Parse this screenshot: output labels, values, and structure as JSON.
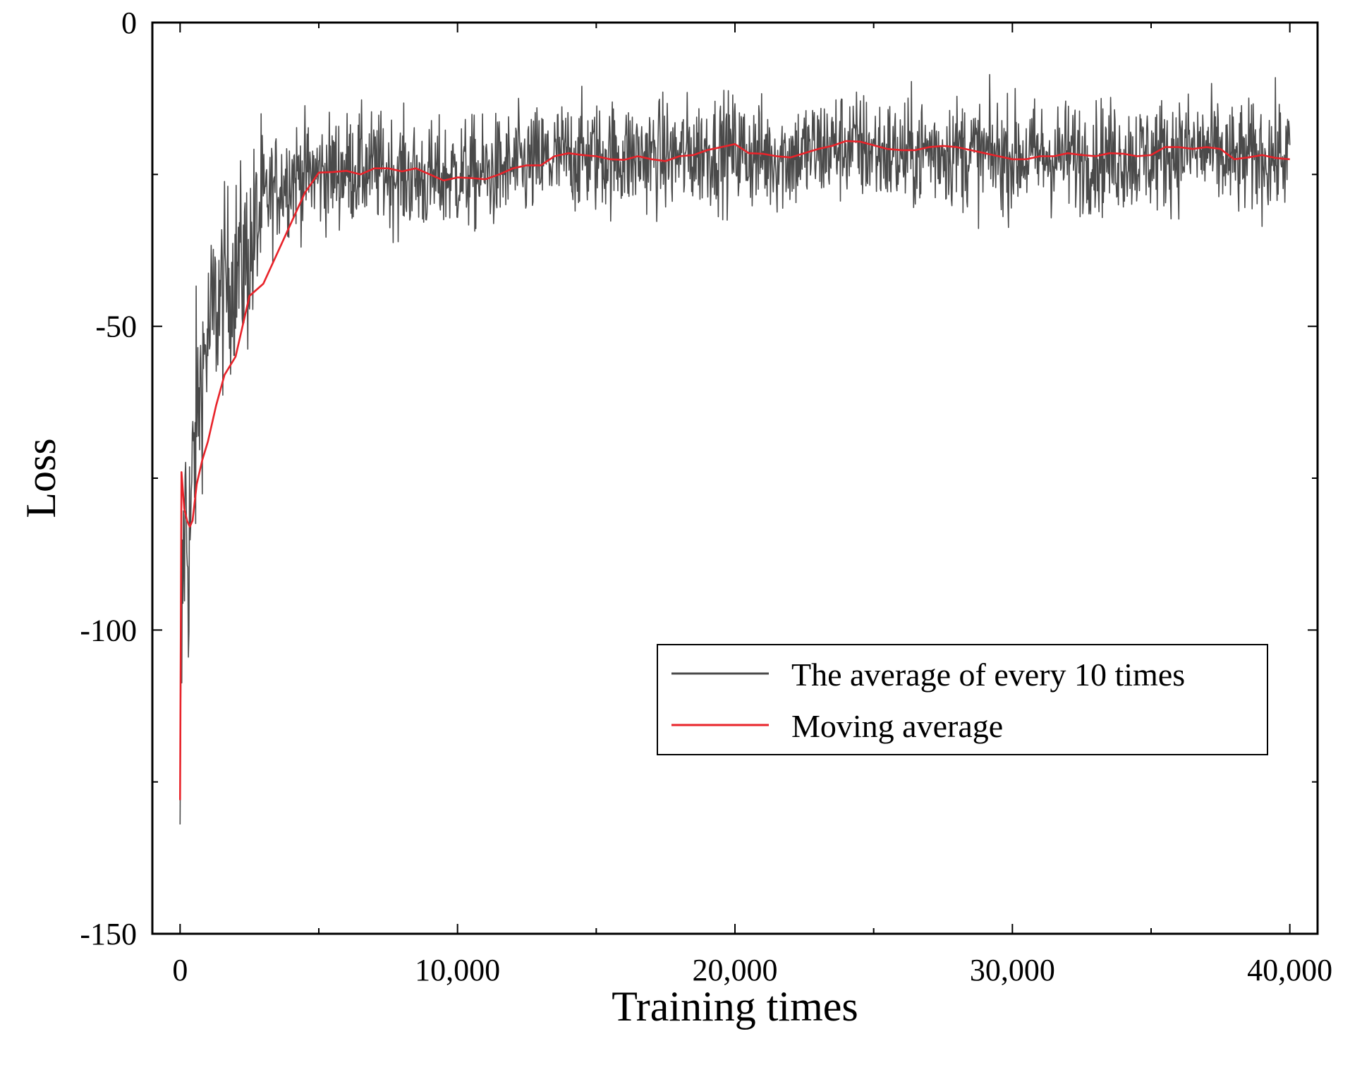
{
  "chart_data": {
    "type": "line",
    "title": "",
    "xlabel": "Training times",
    "ylabel": "Loss",
    "xlim": [
      -1000,
      41000
    ],
    "ylim": [
      -150,
      0
    ],
    "xticks": [
      0,
      10000,
      20000,
      30000,
      40000
    ],
    "xtick_labels": [
      "0",
      "10,000",
      "20,000",
      "30,000",
      "40,000"
    ],
    "yticks": [
      0,
      -50,
      -100,
      -150
    ],
    "ytick_labels": [
      "0",
      "-50",
      "-100",
      "-150"
    ],
    "grid": false,
    "legend_position": "center-right",
    "series": [
      {
        "name": "The average of every 10 times",
        "color": "#4a4a4a",
        "style": "noisy",
        "x": [
          0,
          100,
          200,
          300,
          400,
          600,
          800,
          1000,
          1200,
          1500,
          1800,
          2100,
          2400,
          2600,
          2800,
          3000,
          3500,
          4000,
          5000,
          6000,
          7000,
          8000,
          9000,
          10000,
          11000,
          12000,
          13000,
          14000,
          15000,
          16000,
          17000,
          18000,
          19000,
          20000,
          21000,
          22000,
          23000,
          24000,
          25000,
          26000,
          27000,
          28000,
          29000,
          30000,
          31000,
          32000,
          33000,
          34000,
          35000,
          36000,
          37000,
          38000,
          39000,
          40000
        ],
        "values": [
          -128,
          -90,
          -80,
          -88,
          -80,
          -65,
          -57,
          -52,
          -48,
          -45,
          -42,
          -40,
          -39,
          -37,
          -33,
          -30,
          -27,
          -25,
          -25,
          -24,
          -24,
          -25,
          -26,
          -25,
          -25,
          -24,
          -23,
          -22,
          -22,
          -22,
          -22,
          -22,
          -21,
          -21,
          -22,
          -22,
          -21,
          -20,
          -21,
          -22,
          -21,
          -21,
          -22,
          -22,
          -22,
          -22,
          -22,
          -22,
          -22,
          -21,
          -21,
          -23,
          -22,
          -22
        ],
        "spread": 6.5
      },
      {
        "name": "Moving average",
        "color": "#e8232a",
        "style": "line",
        "x": [
          0,
          50,
          150,
          250,
          350,
          450,
          600,
          800,
          1000,
          1300,
          1600,
          2000,
          2500,
          3000,
          3500,
          4000,
          4500,
          5000,
          5500,
          6000,
          6500,
          7000,
          7500,
          8000,
          8500,
          9000,
          9500,
          10000,
          10500,
          11000,
          11500,
          12000,
          12500,
          13000,
          13500,
          14000,
          14500,
          15000,
          15500,
          16000,
          16500,
          17000,
          17500,
          18000,
          18500,
          19000,
          19500,
          20000,
          20500,
          21000,
          21500,
          22000,
          22500,
          23000,
          23500,
          24000,
          24500,
          25000,
          25500,
          26000,
          26500,
          27000,
          27500,
          28000,
          28500,
          29000,
          29500,
          30000,
          30500,
          31000,
          31500,
          32000,
          32500,
          33000,
          33500,
          34000,
          34500,
          35000,
          35500,
          36000,
          36500,
          37000,
          37500,
          38000,
          38500,
          39000,
          39500,
          40000
        ],
        "values": [
          -128,
          -74,
          -80,
          -82,
          -83,
          -82,
          -76,
          -72,
          -69,
          -63,
          -58,
          -55,
          -45,
          -43,
          -38,
          -33,
          -28,
          -24.7,
          -24.6,
          -24.4,
          -25,
          -24,
          -24,
          -24.5,
          -24,
          -25,
          -26,
          -25.5,
          -25.6,
          -25.8,
          -25,
          -24,
          -23.5,
          -23.5,
          -22,
          -21.5,
          -21.8,
          -22,
          -22.5,
          -22.6,
          -22,
          -22.5,
          -22.8,
          -22,
          -21.8,
          -21,
          -20.5,
          -20,
          -21.5,
          -21.6,
          -22,
          -22.2,
          -21.5,
          -20.8,
          -20.3,
          -19.5,
          -19.6,
          -20.2,
          -20.8,
          -21,
          -21,
          -20.5,
          -20.3,
          -20.5,
          -21,
          -21.5,
          -22,
          -22.5,
          -22.5,
          -22,
          -22,
          -21.5,
          -21.8,
          -22,
          -21.5,
          -21.6,
          -22,
          -21.8,
          -20.5,
          -20.5,
          -20.8,
          -20.5,
          -20.8,
          -22.5,
          -22.2,
          -21.8,
          -22.3,
          -22.5
        ]
      }
    ]
  }
}
